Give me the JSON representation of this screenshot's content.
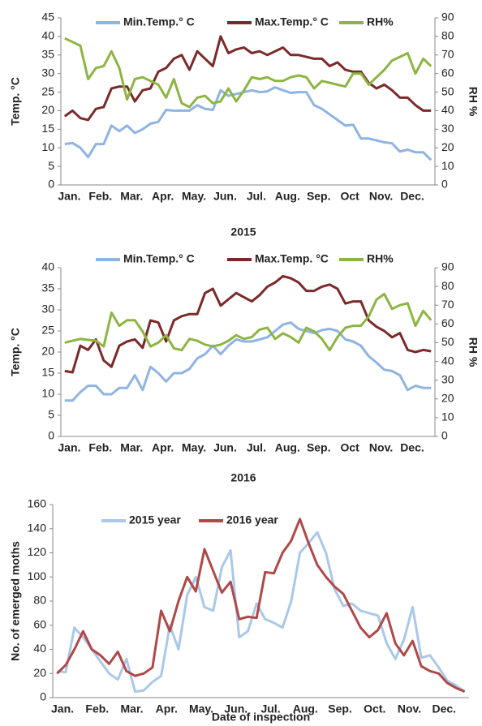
{
  "chart_data": [
    {
      "type": "line",
      "caption": "2015",
      "y_label": "Temp. °C",
      "y2_label": "RH %",
      "categories": [
        null,
        "Jan.",
        null,
        null,
        null,
        "Feb.",
        null,
        null,
        null,
        "Mar.",
        null,
        null,
        null,
        "Apr.",
        null,
        null,
        null,
        "May.",
        null,
        null,
        null,
        "Jun.",
        null,
        null,
        null,
        "Jul.",
        null,
        null,
        null,
        "Aug.",
        null,
        null,
        null,
        "Sep.",
        null,
        null,
        null,
        "Oct",
        null,
        null,
        null,
        "Nov.",
        null,
        null,
        null,
        "Dec.",
        null,
        null
      ],
      "ylim": [
        0,
        45
      ],
      "yticks": [
        0,
        5,
        10,
        15,
        20,
        25,
        30,
        35,
        40,
        45
      ],
      "y2lim": [
        0,
        90
      ],
      "y2ticks": [
        0,
        10,
        20,
        30,
        40,
        50,
        60,
        70,
        80,
        90
      ],
      "series": [
        {
          "name": "Min.Temp.° C",
          "color": "#8fb4e3",
          "values": [
            11,
            11.3,
            10,
            7.5,
            11,
            11,
            16,
            14.5,
            16,
            14,
            15,
            16.5,
            17,
            20.2,
            20,
            20,
            20,
            21.5,
            20.5,
            20.2,
            25.5,
            24,
            24.5,
            25,
            25.5,
            25,
            25.2,
            26.3,
            25.5,
            24.8,
            25,
            25,
            21.5,
            20.5,
            19,
            17.5,
            16,
            16.2,
            12.5,
            12.5,
            12,
            11.5,
            11.2,
            9,
            9.5,
            8.8,
            8.8,
            6.7
          ]
        },
        {
          "name": "Max.Temp.° C",
          "color": "#7b2a2a",
          "values": [
            18.5,
            20,
            18,
            17.5,
            20.5,
            21,
            26,
            26.5,
            26.5,
            22.5,
            25.5,
            26,
            30.5,
            31.5,
            34,
            35,
            31,
            36,
            34,
            32,
            40,
            35.5,
            36.5,
            37,
            35.5,
            36,
            35,
            36,
            37,
            35,
            35,
            34.5,
            34,
            34,
            32,
            33,
            31,
            30.5,
            30.5,
            27.5,
            26,
            27,
            25.5,
            23.5,
            23.5,
            21.5,
            20,
            20
          ]
        },
        {
          "name": "RH%",
          "color": "#8db542",
          "axis": "y2",
          "values": [
            79,
            77,
            75,
            57,
            63,
            64,
            72,
            63,
            46,
            57,
            58,
            56,
            54,
            47,
            57,
            44,
            42,
            47,
            48,
            44,
            45,
            52,
            45,
            51,
            58,
            57,
            58,
            56,
            56,
            58,
            59,
            58,
            52,
            56,
            55,
            54,
            53,
            60,
            60,
            54,
            58,
            62,
            67,
            69,
            71,
            60,
            68,
            64
          ]
        }
      ]
    },
    {
      "type": "line",
      "caption": "2016",
      "y_label": "Temp. °C",
      "y2_label": "RH %",
      "categories": [
        null,
        "Jan.",
        null,
        null,
        null,
        "Feb.",
        null,
        null,
        null,
        "Mar.",
        null,
        null,
        null,
        "Apr.",
        null,
        null,
        null,
        "May.",
        null,
        null,
        null,
        "Jun.",
        null,
        null,
        null,
        "Jul.",
        null,
        null,
        null,
        "Aug.",
        null,
        null,
        null,
        "Sep.",
        null,
        null,
        null,
        "Oct",
        null,
        null,
        null,
        "Nov.",
        null,
        null,
        null,
        "Dec.",
        null,
        null
      ],
      "ylim": [
        0,
        40
      ],
      "yticks": [
        0,
        5,
        10,
        15,
        20,
        25,
        30,
        35,
        40
      ],
      "y2lim": [
        0,
        90
      ],
      "y2ticks": [
        0,
        10,
        20,
        30,
        40,
        50,
        60,
        70,
        80,
        90
      ],
      "series": [
        {
          "name": "Min.Temp.° C",
          "color": "#8fb4e3",
          "values": [
            8.5,
            8.5,
            10.5,
            12,
            12,
            10,
            10,
            11.5,
            11.5,
            14.5,
            11,
            16.5,
            15,
            13,
            15,
            15,
            16,
            18.5,
            19.5,
            21.5,
            19.5,
            21.5,
            23,
            22.5,
            22.5,
            23,
            23.5,
            25,
            26.5,
            27,
            25.5,
            25,
            24.5,
            25.2,
            25.5,
            25,
            23,
            22.5,
            21.5,
            19,
            17.5,
            15.8,
            15.5,
            14.5,
            11,
            12,
            11.5,
            11.5
          ]
        },
        {
          "name": "Max.Temp. °C",
          "color": "#7b2a2a",
          "values": [
            15.5,
            15.2,
            21.5,
            20.5,
            23,
            18,
            16.5,
            21.5,
            22.5,
            23,
            21,
            27.5,
            27,
            22.5,
            27.5,
            28.5,
            29,
            29,
            34,
            35,
            31,
            32.5,
            34,
            33,
            32,
            33.5,
            35.5,
            36.5,
            38,
            37.5,
            36.5,
            34.5,
            34.5,
            35.5,
            36,
            35,
            31.5,
            32,
            32,
            27.5,
            26,
            25,
            23.5,
            24.5,
            20.5,
            20,
            20.5,
            20.2
          ]
        },
        {
          "name": "RH%",
          "color": "#8db542",
          "axis": "y2",
          "values": [
            50,
            51,
            52,
            51.5,
            51,
            48,
            66,
            59,
            62,
            62,
            56,
            48,
            50,
            54,
            47,
            46,
            52,
            51,
            49,
            48,
            49,
            51,
            54,
            52,
            53,
            57,
            58,
            52,
            55,
            53,
            50,
            58,
            56,
            52,
            46,
            53,
            58,
            59,
            59,
            64,
            73,
            76,
            68,
            70,
            71,
            59,
            67,
            62
          ]
        }
      ]
    },
    {
      "type": "line",
      "y_label": "No. of emerged moths",
      "x_label": "Date of inspection",
      "categories": [
        null,
        "Jan.",
        null,
        null,
        null,
        "Feb.",
        null,
        null,
        null,
        "Mar.",
        null,
        null,
        null,
        "Apr.",
        null,
        null,
        null,
        "May.",
        null,
        null,
        null,
        "Jun.",
        null,
        null,
        null,
        "Jul.",
        null,
        null,
        null,
        "Aug.",
        null,
        null,
        null,
        "Sep.",
        null,
        null,
        null,
        "Oct.",
        null,
        null,
        null,
        "Nov.",
        null,
        null,
        null,
        "Dec.",
        null,
        null
      ],
      "ylim": [
        0,
        160
      ],
      "yticks": [
        0,
        20,
        40,
        60,
        80,
        100,
        120,
        140,
        160
      ],
      "series": [
        {
          "name": "2015 year",
          "color": "#a9c8ea",
          "values": [
            22,
            21,
            58,
            50,
            40,
            30,
            20,
            15,
            32,
            5,
            6,
            13,
            18,
            60,
            40,
            85,
            100,
            75,
            72,
            108,
            122,
            50,
            55,
            78,
            65,
            62,
            58,
            80,
            120,
            128,
            137,
            120,
            90,
            76,
            78,
            72,
            70,
            68,
            45,
            32,
            48,
            75,
            33,
            35,
            25,
            14,
            10,
            5
          ]
        },
        {
          "name": "2016 year",
          "color": "#b04848",
          "values": [
            20,
            27,
            40,
            55,
            40,
            35,
            28,
            38,
            22,
            18,
            20,
            25,
            72,
            55,
            80,
            100,
            88,
            123,
            105,
            87,
            96,
            65,
            67,
            66,
            104,
            103,
            120,
            130,
            148,
            128,
            110,
            100,
            92,
            86,
            72,
            58,
            50,
            56,
            70,
            45,
            35,
            47,
            26,
            22,
            20,
            12,
            8,
            5
          ]
        }
      ]
    }
  ]
}
